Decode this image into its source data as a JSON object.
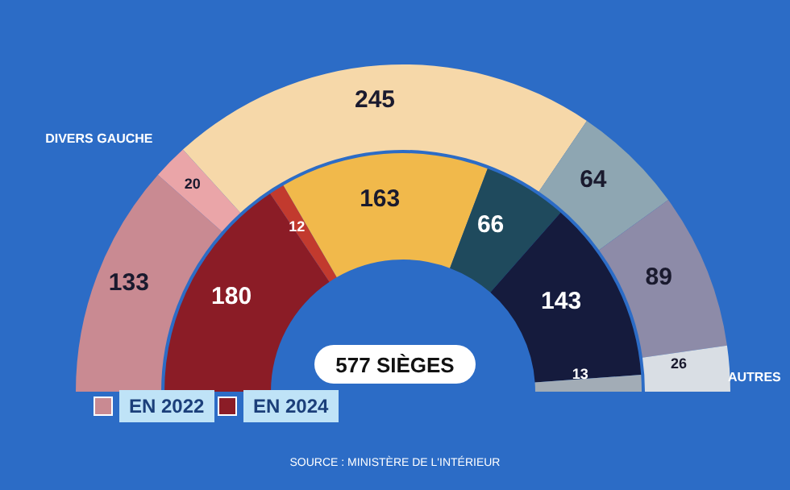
{
  "chart_data": {
    "type": "donut",
    "categories": [
      null,
      "DIVERS GAUCHE",
      null,
      null,
      null,
      "AUTRES"
    ],
    "series": [
      {
        "name": "EN 2022",
        "values": [
          133,
          20,
          245,
          64,
          89,
          26
        ],
        "colors": [
          "#c98a92",
          "#eaa5a8",
          "#f6d8a9",
          "#8ea6b2",
          "#8d8ba8",
          "#d9dee4"
        ]
      },
      {
        "name": "EN 2024",
        "values": [
          180,
          12,
          163,
          66,
          143,
          13
        ],
        "colors": [
          "#8b1c26",
          "#c23a2e",
          "#f1b94b",
          "#1f4a5d",
          "#151b3d",
          "#a2acb6"
        ]
      }
    ],
    "data_labels": true,
    "legend": "bottom left",
    "annotations": [
      "577 SIÈGES",
      "SOURCE : MINISTÈRE DE L'INTÉRIEUR"
    ]
  }
}
